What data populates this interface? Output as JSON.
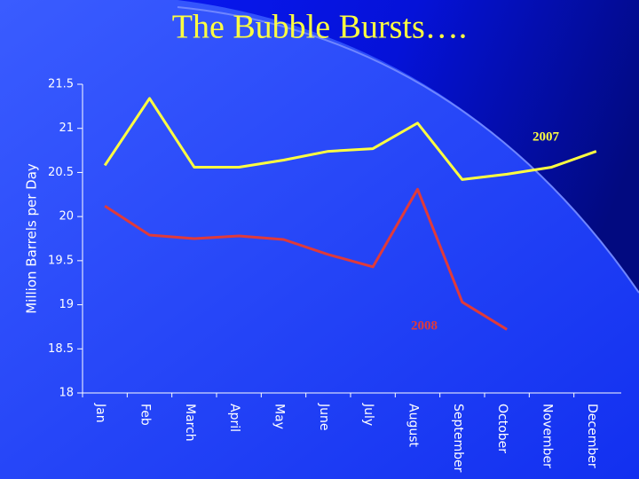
{
  "chart_data": {
    "type": "line",
    "title": "The Bubble Bursts….",
    "y_label": "Million Barrels per Day",
    "categories": [
      "Jan",
      "Feb",
      "March",
      "April",
      "May",
      "June",
      "July",
      "August",
      "September",
      "October",
      "November",
      "December"
    ],
    "series": [
      {
        "name": "2007",
        "color": "#ffff40",
        "values": [
          20.58,
          21.34,
          20.56,
          20.56,
          20.64,
          20.74,
          20.77,
          21.06,
          20.42,
          20.48,
          20.56,
          20.74
        ]
      },
      {
        "name": "2008",
        "color": "#e03a3a",
        "values": [
          20.12,
          19.79,
          19.75,
          19.78,
          19.74,
          19.57,
          19.43,
          20.31,
          19.03,
          18.72,
          null,
          null
        ]
      }
    ],
    "ylim": [
      18,
      21.5
    ],
    "yticks": [
      18,
      18.5,
      19,
      19.5,
      20,
      20.5,
      21,
      21.5
    ]
  }
}
